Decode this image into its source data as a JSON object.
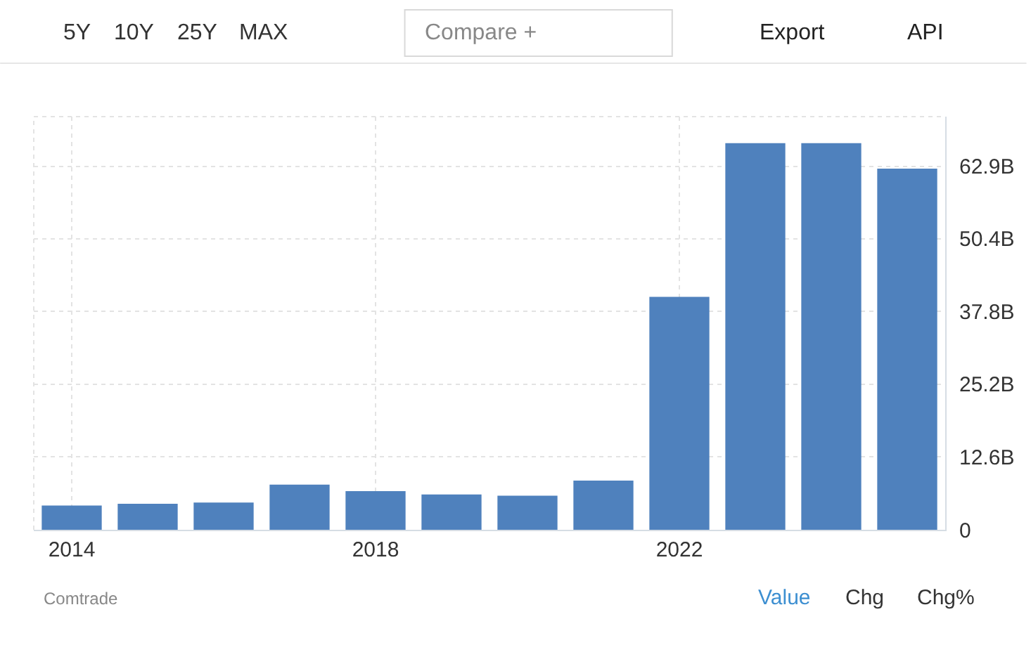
{
  "chart_data": {
    "type": "bar",
    "x": [
      2014,
      2015,
      2016,
      2017,
      2018,
      2019,
      2020,
      2021,
      2022,
      2023,
      2024,
      2025
    ],
    "values": [
      4.2,
      4.5,
      4.7,
      7.8,
      6.7,
      6.1,
      5.9,
      8.5,
      40.3,
      66.9,
      66.9,
      62.5
    ],
    "color": "#4f81bd",
    "xlim": [
      2013.5,
      2025.5
    ],
    "xticks": [
      2014,
      2018,
      2022
    ],
    "ylim": [
      0,
      71.5
    ],
    "yticks": [
      0,
      {
        "value": 12.6,
        "label": "12.6B"
      },
      {
        "value": 25.2,
        "label": "25.2B"
      },
      {
        "value": 37.8,
        "label": "37.8B"
      },
      {
        "value": 50.4,
        "label": "50.4B"
      },
      {
        "value": 62.9,
        "label": "62.9B"
      }
    ],
    "grid": true,
    "annotations": [
      "5Y",
      "10Y",
      "25Y",
      "MAX",
      "Compare +",
      "Export",
      "API",
      "Comtrade",
      "Value",
      "Chg",
      "Chg%"
    ]
  }
}
